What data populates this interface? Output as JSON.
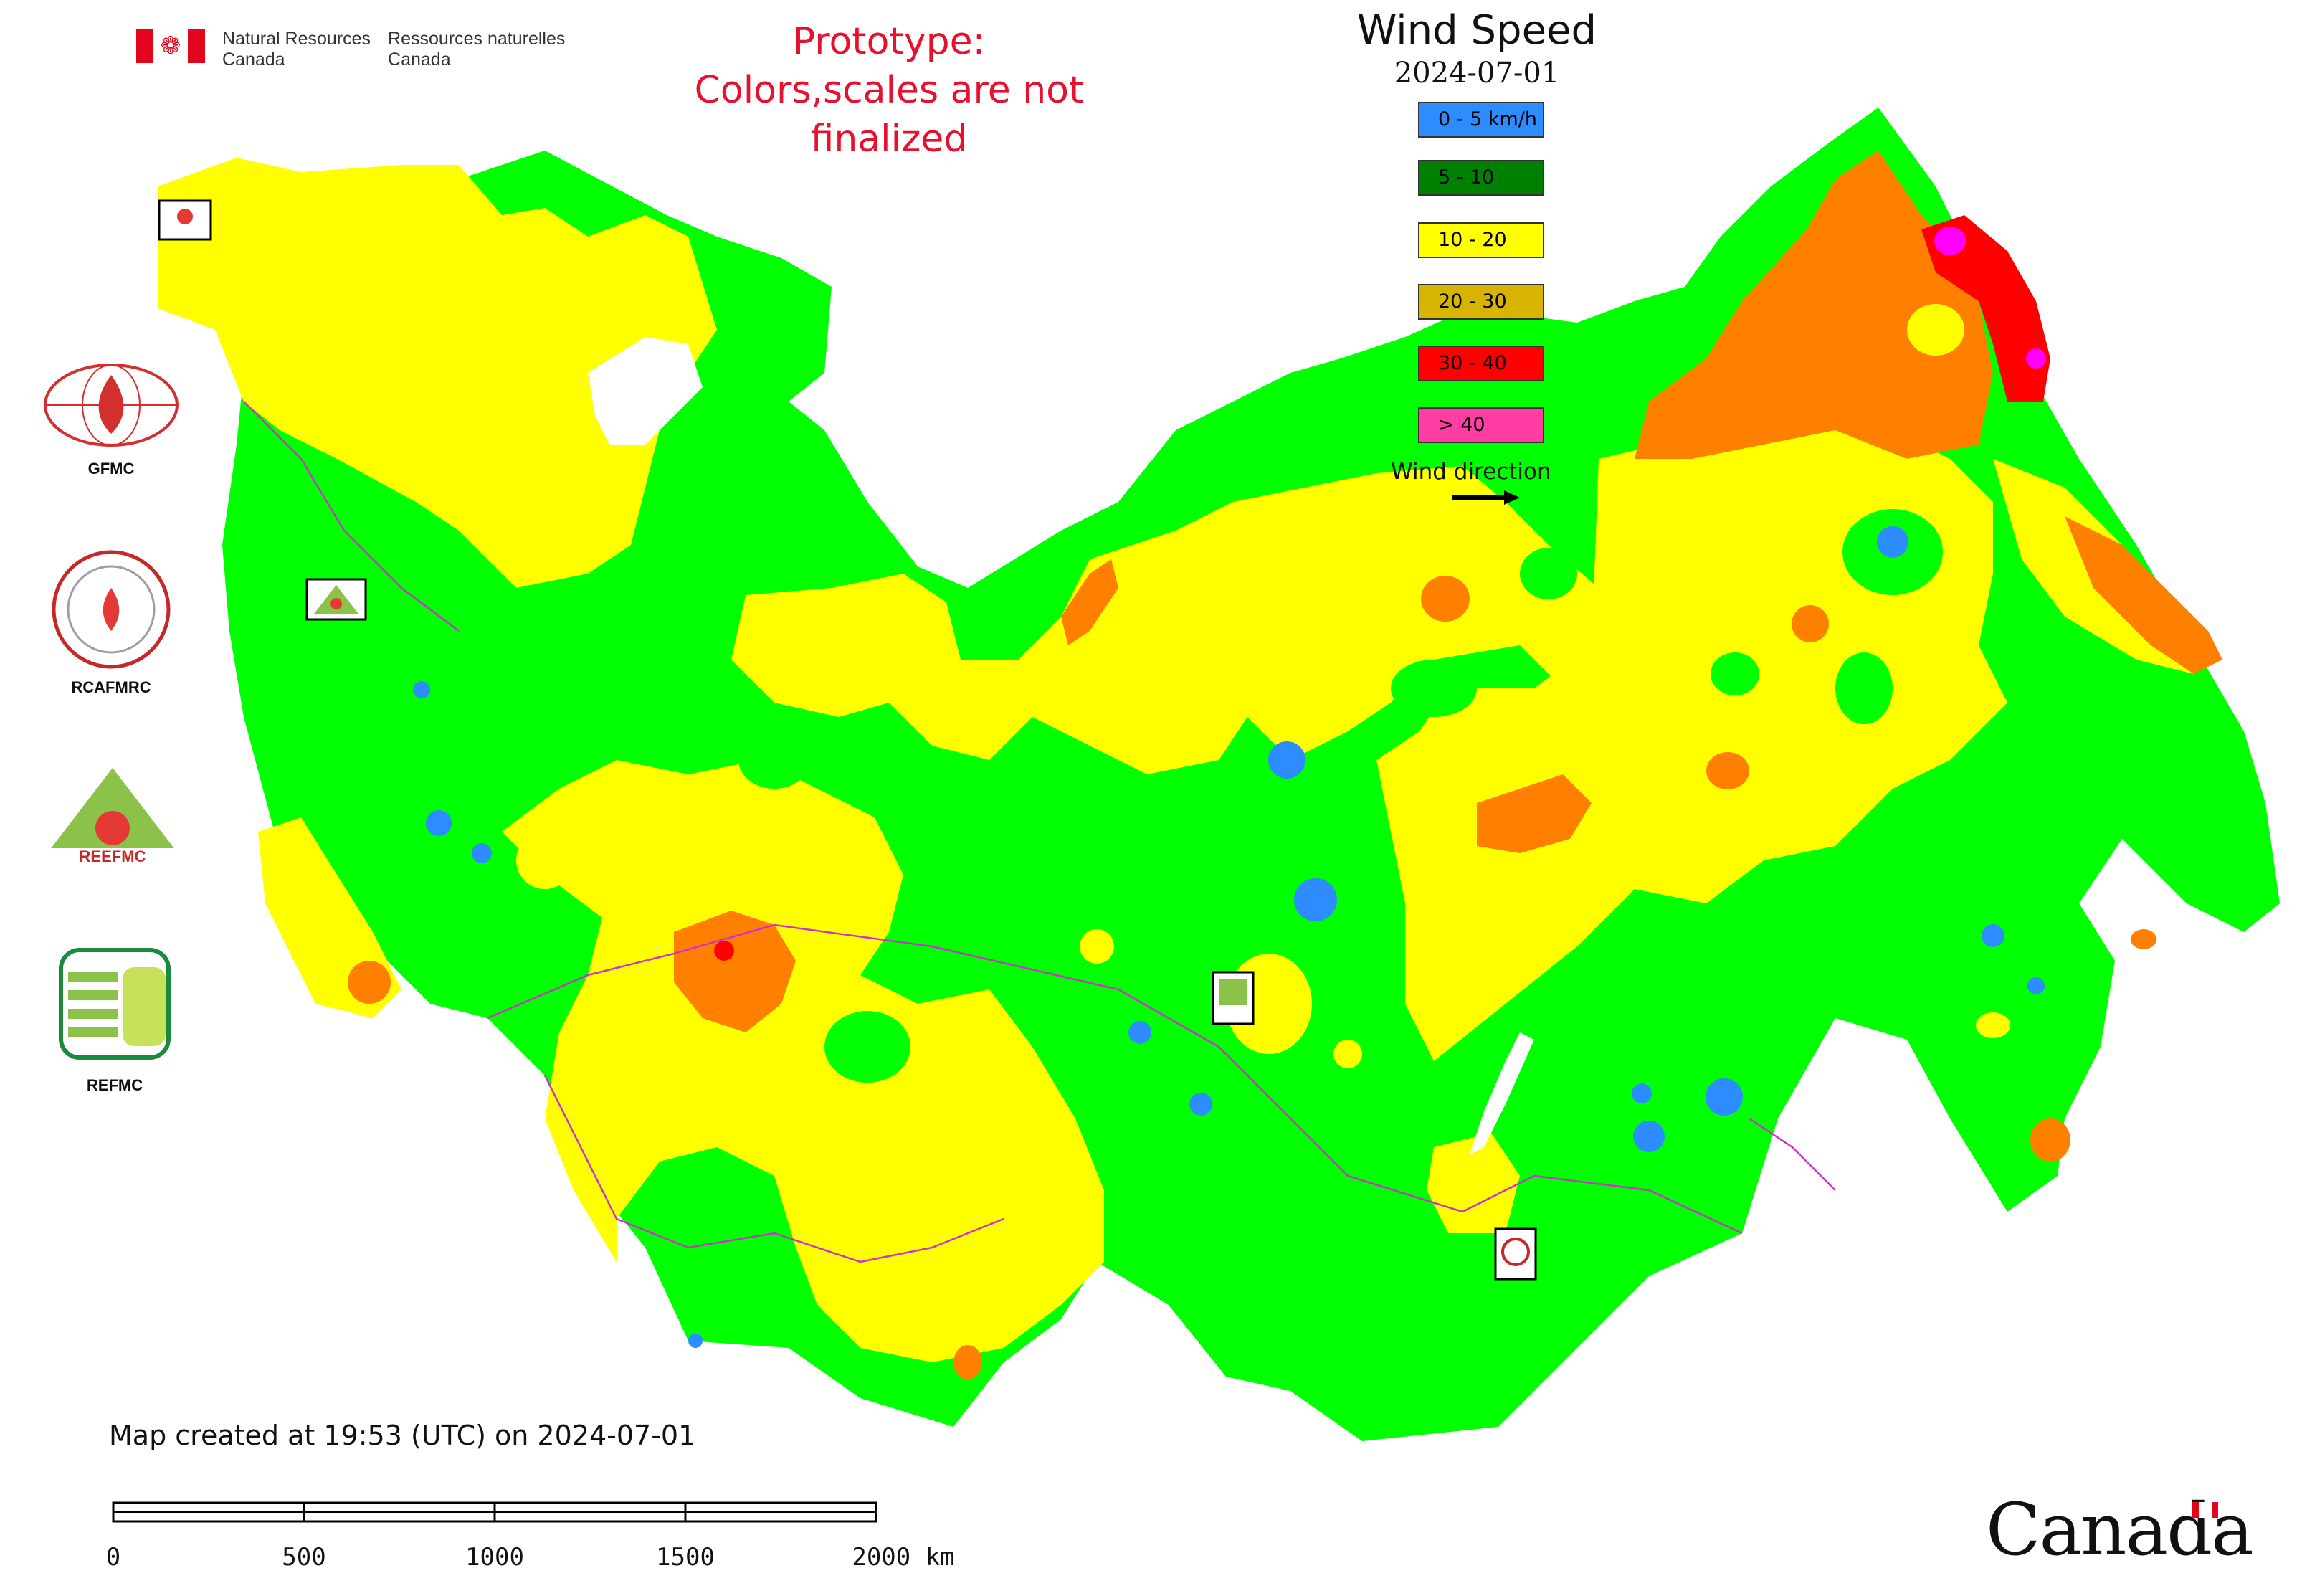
{
  "header": {
    "dept_en_line1": "Natural Resources",
    "dept_en_line2": "Canada",
    "dept_fr_line1": "Ressources naturelles",
    "dept_fr_line2": "Canada"
  },
  "notice": {
    "line1": "Prototype:",
    "line2": "Colors,scales are not finalized",
    "color": "#e8112d"
  },
  "legend": {
    "title": "Wind Speed",
    "date": "2024-07-01",
    "classes": [
      {
        "label": "0 - 5 km/h",
        "color": "#2d8cff"
      },
      {
        "label": "5 - 10",
        "color": "#008000"
      },
      {
        "label": "10 - 20",
        "color": "#ffff00"
      },
      {
        "label": "20 - 30",
        "color": "#d7b400"
      },
      {
        "label": "30 - 40",
        "color": "#ff0000"
      },
      {
        "label": "> 40",
        "color": "#ff3da2"
      }
    ],
    "wind_direction_label": "Wind direction"
  },
  "map_colors": {
    "land_green": "#00ff00",
    "land_yellow": "#ffff00",
    "land_orange": "#ff8000",
    "land_red": "#ff0000",
    "land_magenta": "#ff00ff",
    "water_blue": "#2d8cff",
    "boundary": "#cc33cc"
  },
  "partner_logos": [
    {
      "name": "GFMC",
      "label": "GFMC"
    },
    {
      "name": "RCAFMRC",
      "label": "RCAFMRC"
    },
    {
      "name": "REEFMC",
      "label": "REEFMC"
    },
    {
      "name": "REFMC",
      "label": "REFMC"
    }
  ],
  "map_markers": {
    "west": "REEFMC",
    "center": "REFMC",
    "south": "RCAFMRC",
    "northwest": "GFMC"
  },
  "footer": {
    "created": "Map created at 19:53 (UTC) on 2024-07-01",
    "scale_labels": [
      "0",
      "500",
      "1000",
      "1500",
      "2000 km"
    ],
    "wordmark": "Canada"
  }
}
